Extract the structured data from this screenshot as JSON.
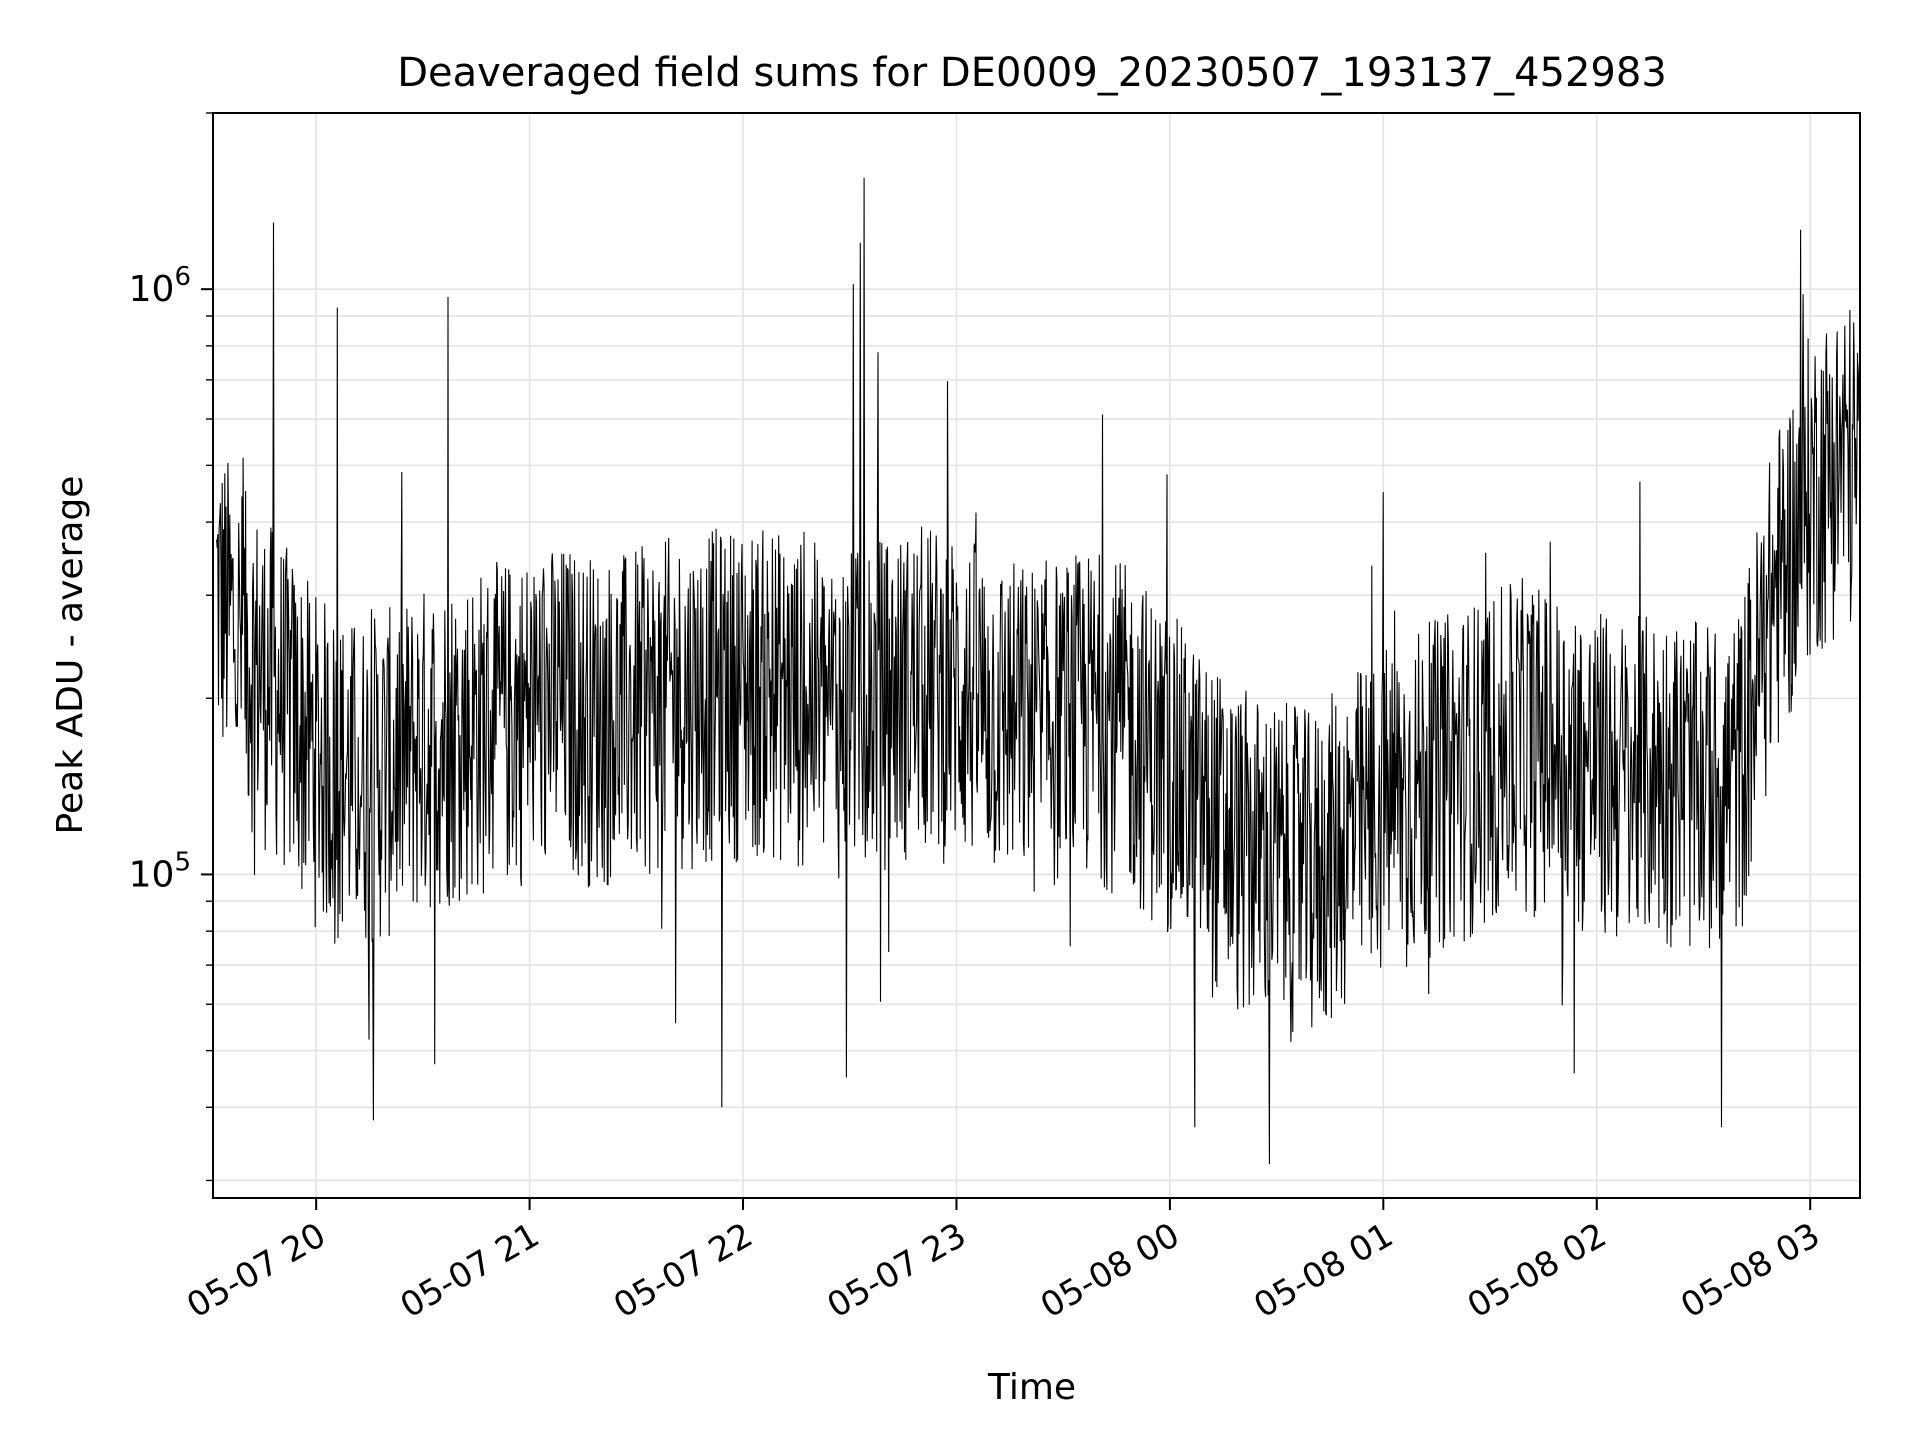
{
  "chart_data": {
    "type": "line",
    "title": "Deaveraged field sums for DE0009_20230507_193137_452983",
    "xlabel": "Time",
    "ylabel": "Peak ADU - average",
    "yscale": "log",
    "x_range": [
      "2023-05-07 19:31",
      "2023-05-08 03:14"
    ],
    "y_range": [
      28000,
      2000000
    ],
    "x_tick_labels": [
      "05-07 20",
      "05-07 21",
      "05-07 22",
      "05-07 23",
      "05-08 00",
      "05-08 01",
      "05-08 02",
      "05-08 03"
    ],
    "y_tick_labels": [
      {
        "base": "10",
        "exp": "5",
        "value": 100000
      },
      {
        "base": "10",
        "exp": "6",
        "value": 1000000
      }
    ],
    "grid": true,
    "line_color": "#000000",
    "series": [
      {
        "x": [
          "2023-05-07 19:32",
          "2023-05-07 19:40",
          "2023-05-07 19:50",
          "2023-05-07 20:00",
          "2023-05-07 20:10",
          "2023-05-07 20:20",
          "2023-05-07 20:30",
          "2023-05-07 20:40",
          "2023-05-07 20:50",
          "2023-05-07 21:00",
          "2023-05-07 21:10",
          "2023-05-07 21:20",
          "2023-05-07 21:30",
          "2023-05-07 21:40",
          "2023-05-07 21:50",
          "2023-05-07 22:00",
          "2023-05-07 22:10",
          "2023-05-07 22:20",
          "2023-05-07 22:30",
          "2023-05-07 22:40",
          "2023-05-07 22:50",
          "2023-05-07 23:00",
          "2023-05-07 23:10",
          "2023-05-07 23:20",
          "2023-05-07 23:30",
          "2023-05-07 23:40",
          "2023-05-07 23:50",
          "2023-05-08 00:00",
          "2023-05-08 00:10",
          "2023-05-08 00:20",
          "2023-05-08 00:30",
          "2023-05-08 00:40",
          "2023-05-08 00:50",
          "2023-05-08 01:00",
          "2023-05-08 01:10",
          "2023-05-08 01:20",
          "2023-05-08 01:30",
          "2023-05-08 01:40",
          "2023-05-08 01:50",
          "2023-05-08 02:00",
          "2023-05-08 02:10",
          "2023-05-08 02:20",
          "2023-05-08 02:30",
          "2023-05-08 02:40",
          "2023-05-08 02:50",
          "2023-05-08 03:00",
          "2023-05-08 03:10",
          "2023-05-08 03:14"
        ],
        "y": [
          300000,
          240000,
          200000,
          160000,
          145000,
          150000,
          165000,
          175000,
          180000,
          190000,
          195000,
          185000,
          190000,
          200000,
          205000,
          210000,
          205000,
          195000,
          190000,
          200000,
          210000,
          205000,
          190000,
          180000,
          185000,
          190000,
          175000,
          150000,
          125000,
          110000,
          105000,
          100000,
          115000,
          130000,
          140000,
          150000,
          160000,
          170000,
          160000,
          150000,
          145000,
          150000,
          140000,
          150000,
          300000,
          450000,
          520000,
          480000
        ]
      }
    ],
    "noise_envelope": {
      "low_factor": 0.5,
      "high_factor": 1.9
    },
    "spikes": [
      {
        "x": "2023-05-07 19:48",
        "y": 1300000
      },
      {
        "x": "2023-05-07 20:06",
        "y": 930000
      },
      {
        "x": "2023-05-07 20:37",
        "y": 970000
      },
      {
        "x": "2023-05-07 22:34",
        "y": 1550000
      },
      {
        "x": "2023-05-07 22:33",
        "y": 1200000
      },
      {
        "x": "2023-05-07 22:31",
        "y": 1020000
      },
      {
        "x": "2023-05-07 22:38",
        "y": 780000
      },
      {
        "x": "2023-05-08 01:00",
        "y": 450000
      },
      {
        "x": "2023-05-08 02:58",
        "y": 980000
      },
      {
        "x": "2023-05-07 20:16",
        "y": 38000
      },
      {
        "x": "2023-05-07 21:54",
        "y": 40000
      },
      {
        "x": "2023-05-07 22:29",
        "y": 45000
      },
      {
        "x": "2023-05-08 00:28",
        "y": 32000
      },
      {
        "x": "2023-05-08 00:07",
        "y": 37000
      },
      {
        "x": "2023-05-08 02:35",
        "y": 37000
      }
    ]
  }
}
